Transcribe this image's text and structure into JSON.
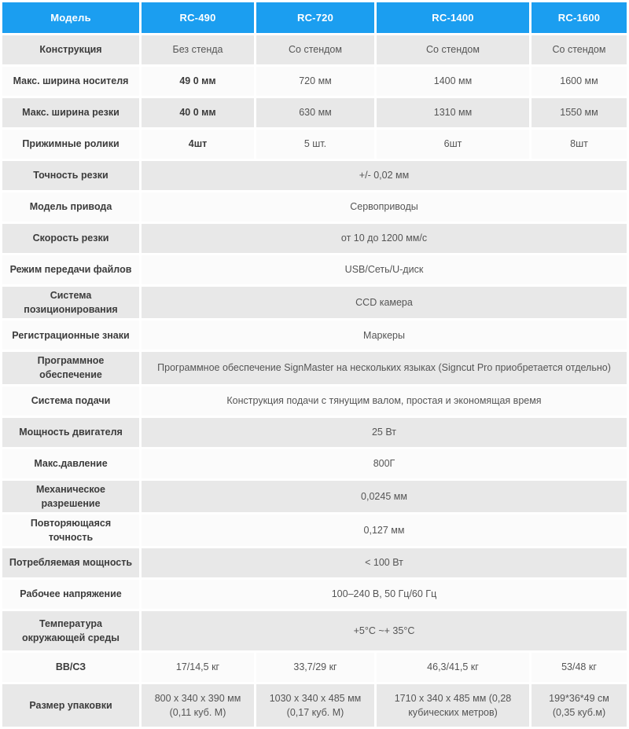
{
  "colors": {
    "header_bg": "#1b9ef0",
    "header_text": "#ffffff",
    "row_gray": "#e8e8e8",
    "row_light": "#fbfbfb",
    "label_text": "#3c3c3c",
    "value_text": "#555555"
  },
  "table": {
    "header": [
      "Модель",
      "RC-490",
      "RC-720",
      "RC-1400",
      "RC-1600"
    ],
    "rows": [
      {
        "label": "Конструкция",
        "values": [
          "Без стенда",
          "Со стендом",
          "Со стендом",
          "Со стендом"
        ]
      },
      {
        "label": "Макс. ширина носителя",
        "values": [
          "49 0 мм",
          "720 мм",
          "1400 мм",
          "1600 мм"
        ],
        "bold_first": true
      },
      {
        "label": "Макс. ширина резки",
        "values": [
          "40 0 мм",
          "630 мм",
          "1310 мм",
          "1550 мм"
        ],
        "bold_first": true
      },
      {
        "label": "Прижимные ролики",
        "values": [
          "4шт",
          "5 шт.",
          "6шт",
          "8шт"
        ],
        "bold_first": true
      },
      {
        "label": "Точность резки",
        "span": true,
        "values": [
          "+/- 0,02 мм"
        ]
      },
      {
        "label": "Модель привода",
        "span": true,
        "values": [
          "Сервоприводы"
        ]
      },
      {
        "label": "Скорость резки",
        "span": true,
        "values": [
          "от 10 до 1200 мм/с"
        ]
      },
      {
        "label": "Режим передачи файлов",
        "span": true,
        "values": [
          "USB/Сеть/U-диск"
        ]
      },
      {
        "label": "Система позиционирования",
        "span": true,
        "values": [
          "CCD камера"
        ]
      },
      {
        "label": "Регистрационные знаки",
        "span": true,
        "values": [
          "Маркеры"
        ]
      },
      {
        "label": "Программное обеспечение",
        "span": true,
        "values": [
          "Программное обеспечение SignMaster на нескольких языках (Signcut Pro приобретается отдельно)"
        ]
      },
      {
        "label": "Система подачи",
        "span": true,
        "values": [
          "Конструкция подачи с тянущим валом, простая и экономящая время"
        ]
      },
      {
        "label": "Мощность двигателя",
        "span": true,
        "values": [
          "25 Вт"
        ]
      },
      {
        "label": "Макс.давление",
        "span": true,
        "values": [
          "800Г"
        ]
      },
      {
        "label": "Механическое разрешение",
        "span": true,
        "values": [
          "0,0245 мм"
        ]
      },
      {
        "label": "Повторяющаяся точность",
        "span": true,
        "values": [
          "0,127 мм"
        ]
      },
      {
        "label": "Потребляемая мощность",
        "span": true,
        "values": [
          "< 100 Вт"
        ]
      },
      {
        "label": "Рабочее напряжение",
        "span": true,
        "values": [
          "100–240 В, 50 Гц/60 Гц"
        ]
      },
      {
        "label": "Температура окружающей среды",
        "span": true,
        "values": [
          "+5°C ~+ 35°C"
        ]
      },
      {
        "label": "ВВ/СЗ",
        "values": [
          "17/14,5 кг",
          "33,7/29 кг",
          "46,3/41,5 кг",
          "53/48 кг"
        ]
      },
      {
        "label": "Размер упаковки",
        "values": [
          "800 х 340 х 390 мм (0,11 куб. М)",
          "1030 х 340 х 485 мм (0,17 куб. М)",
          "1710 х 340 х 485 мм (0,28 кубических метров)",
          "199*36*49 см (0,35 куб.м)"
        ]
      }
    ]
  }
}
